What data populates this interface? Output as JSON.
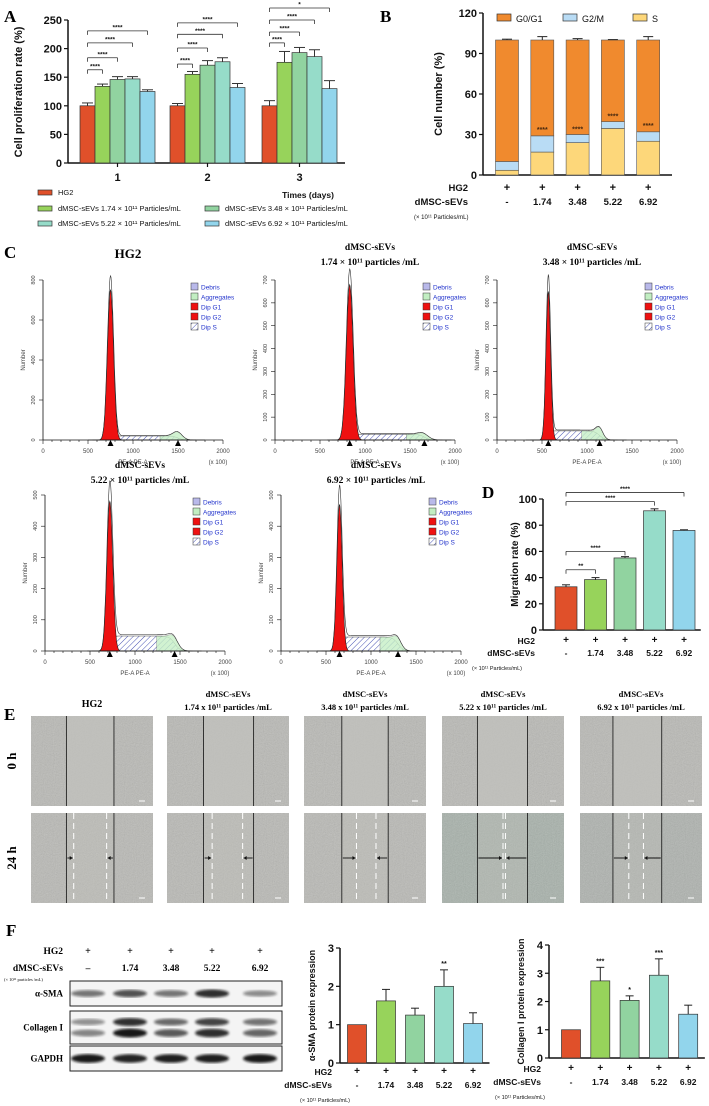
{
  "panels": [
    "A",
    "B",
    "C",
    "D",
    "E",
    "F"
  ],
  "rows": {
    "hg2": "HG2",
    "sevs": "dMSC-sEVs",
    "unit": "(× 10¹¹ Particles/mL)",
    "unit_f": "(× 10¹¹ particles /mL)",
    "plus": "+"
  },
  "chart_data": [
    {
      "panel": "A",
      "type": "bar",
      "ylabel": "Cell proliferation rate  (%)",
      "xlabel": "Times (days)",
      "categories": [
        "1",
        "2",
        "3"
      ],
      "ylim": [
        0,
        250
      ],
      "yticks": [
        "0",
        "50",
        "100",
        "150",
        "200",
        "250"
      ],
      "series": [
        {
          "name": "HG2",
          "color": "#e0502a",
          "values": [
            100,
            100,
            100
          ],
          "errors": [
            5,
            4,
            9
          ]
        },
        {
          "name": "dMSC-sEVs 1.74 × 10¹¹ Particles/mL",
          "color": "#97d35b",
          "values": [
            134,
            155,
            176
          ],
          "errors": [
            4,
            5,
            19
          ]
        },
        {
          "name": "dMSC-sEVs 3.48 × 10¹¹ Particles/mL",
          "color": "#91d3a0",
          "values": [
            146,
            171,
            193
          ],
          "errors": [
            5,
            8,
            9
          ]
        },
        {
          "name": "dMSC-sEVs 5.22 × 10¹¹ Particles/mL",
          "color": "#96dcc9",
          "values": [
            147,
            177,
            186
          ],
          "errors": [
            4,
            7,
            12
          ]
        },
        {
          "name": "dMSC-sEVs 6.92 × 10¹¹ Particles/mL",
          "color": "#92d5ec",
          "values": [
            125,
            132,
            130
          ],
          "errors": [
            3,
            7,
            14
          ]
        }
      ],
      "significance": [
        {
          "group": 0,
          "to": 1,
          "y": 163,
          "label": "****"
        },
        {
          "group": 0,
          "to": 2,
          "y": 184,
          "label": "****"
        },
        {
          "group": 0,
          "to": 3,
          "y": 210,
          "label": "****"
        },
        {
          "group": 0,
          "to": 4,
          "y": 231,
          "label": "****"
        },
        {
          "group": 1,
          "to": 1,
          "y": 173,
          "label": "****"
        },
        {
          "group": 1,
          "to": 2,
          "y": 201,
          "label": "****"
        },
        {
          "group": 1,
          "to": 3,
          "y": 225,
          "label": "****"
        },
        {
          "group": 1,
          "to": 4,
          "y": 245,
          "label": "****"
        },
        {
          "group": 2,
          "to": 1,
          "y": 210,
          "label": "****"
        },
        {
          "group": 2,
          "to": 2,
          "y": 229,
          "label": "****"
        },
        {
          "group": 2,
          "to": 3,
          "y": 250,
          "label": "****"
        },
        {
          "group": 2,
          "to": 4,
          "y": 271,
          "label": "*"
        }
      ]
    },
    {
      "panel": "B",
      "type": "bar",
      "stacked": true,
      "ylabel": "Cell number (%)",
      "ylim": [
        0,
        120
      ],
      "yticks": [
        "0",
        "30",
        "60",
        "90",
        "120"
      ],
      "categories": [
        "-",
        "1.74",
        "3.48",
        "5.22",
        "6.92"
      ],
      "series": [
        {
          "name": "S",
          "color": "#fdd77a",
          "values": [
            3.5,
            17,
            24,
            34.5,
            25
          ],
          "errors": [
            0.8,
            3,
            3,
            4,
            2.5
          ]
        },
        {
          "name": "G2/M",
          "color": "#b9dcf5",
          "values": [
            6.5,
            12,
            6,
            5,
            7
          ],
          "errors": [
            1,
            2,
            1.5,
            1.5,
            2
          ]
        },
        {
          "name": "G0/G1",
          "color": "#f08a2e",
          "values": [
            90,
            71,
            70,
            60.5,
            68
          ],
          "errors": [
            0.6,
            2.5,
            1,
            0.3,
            2.5
          ]
        }
      ],
      "stars": [
        "",
        "****",
        "****",
        "****",
        "****"
      ]
    },
    {
      "panel": "C",
      "type": "histogram",
      "title": [
        "HG2",
        ""
      ],
      "xlabel": "PE-A PE-A",
      "xunit": "(x 100)",
      "ylabel": "Number",
      "xticks": [
        "0",
        "500",
        "1000",
        "1500",
        "2000"
      ],
      "ymax": 800,
      "yticks": [
        "0",
        "200",
        "400",
        "600",
        "800"
      ],
      "g1_peak_channel": 750,
      "g1_peak_count": 750,
      "s_level": 20,
      "g2_count": 30,
      "legend": [
        "Debris",
        "Aggregates",
        "Dip G1",
        "Dip G2",
        "Dip S"
      ]
    },
    {
      "panel": "C",
      "type": "histogram",
      "title": [
        "dMSC-sEVs",
        "1.74 × 10¹¹ particles /mL"
      ],
      "xlabel": "PE-A PE-A",
      "xunit": "(x 100)",
      "ylabel": "Number",
      "xticks": [
        "0",
        "500",
        "1000",
        "1500",
        "2000"
      ],
      "ymax": 700,
      "yticks": [
        "0",
        "100",
        "200",
        "300",
        "400",
        "500",
        "600",
        "700"
      ],
      "g1_peak_channel": 830,
      "g1_peak_count": 680,
      "s_level": 25,
      "g2_count": 15,
      "legend": [
        "Debris",
        "Aggregates",
        "Dip G1",
        "Dip G2",
        "Dip S"
      ]
    },
    {
      "panel": "C",
      "type": "histogram",
      "title": [
        "dMSC-sEVs",
        "3.48 × 10¹¹ particles /mL"
      ],
      "xlabel": "PE-A PE-A",
      "xunit": "(x 100)",
      "ylabel": "Number",
      "xticks": [
        "0",
        "500",
        "1000",
        "1500",
        "2000"
      ],
      "ymax": 700,
      "yticks": [
        "0",
        "100",
        "200",
        "300",
        "400",
        "500",
        "600",
        "700"
      ],
      "g1_peak_channel": 570,
      "g1_peak_count": 650,
      "s_level": 40,
      "g2_count": 35,
      "legend": [
        "Debris",
        "Aggregates",
        "Dip G1",
        "Dip G2",
        "Dip S"
      ]
    },
    {
      "panel": "C",
      "type": "histogram",
      "title": [
        "dMSC-sEVs",
        "5.22 × 10¹¹ particles /mL"
      ],
      "xlabel": "PE-A PE-A",
      "xunit": "(x 100)",
      "ylabel": "Number",
      "xticks": [
        "0",
        "500",
        "1000",
        "1500",
        "2000"
      ],
      "ymax": 500,
      "yticks": [
        "0",
        "100",
        "200",
        "300",
        "400",
        "500"
      ],
      "g1_peak_channel": 720,
      "g1_peak_count": 480,
      "s_level": 48,
      "g2_count": 20,
      "legend": [
        "Debris",
        "Aggregates",
        "Dip G1",
        "Dip G2",
        "Dip S"
      ]
    },
    {
      "panel": "C",
      "type": "histogram",
      "title": [
        "dMSC-sEVs",
        "6.92 × 10¹¹ particles /mL"
      ],
      "xlabel": "PE-A PE-A",
      "xunit": "(x 100)",
      "ylabel": "Number",
      "xticks": [
        "0",
        "500",
        "1000",
        "1500",
        "2000"
      ],
      "ymax": 500,
      "yticks": [
        "0",
        "100",
        "200",
        "300",
        "400",
        "500"
      ],
      "g1_peak_channel": 650,
      "g1_peak_count": 470,
      "s_level": 45,
      "g2_count": 20,
      "legend": [
        "Debris",
        "Aggregates",
        "Dip G1",
        "Dip G2",
        "Dip S"
      ]
    },
    {
      "panel": "D",
      "type": "bar",
      "ylabel": "Migration rate (%)",
      "ylim": [
        0,
        100
      ],
      "yticks": [
        "0",
        "20",
        "40",
        "60",
        "80",
        "100"
      ],
      "categories": [
        "-",
        "1.74",
        "3.48",
        "5.22",
        "6.92"
      ],
      "values": [
        33,
        38.5,
        55,
        91,
        76
      ],
      "errors": [
        1.5,
        1.5,
        1,
        1.5,
        0.5
      ],
      "colors": [
        "#e0502a",
        "#97d35b",
        "#91d3a0",
        "#96dcc9",
        "#92d5ec"
      ],
      "significance": [
        {
          "to": 1,
          "y": 46,
          "label": "**"
        },
        {
          "to": 2,
          "y": 60,
          "label": "****"
        },
        {
          "to": 3,
          "y": 98,
          "label": "****"
        },
        {
          "to": 4,
          "y": 105,
          "label": "****"
        }
      ]
    },
    {
      "panel": "F",
      "type": "bar",
      "ylabel": "α-SMA protein expression",
      "ylim": [
        0,
        3
      ],
      "yticks": [
        "0",
        "1",
        "2",
        "3"
      ],
      "categories": [
        "-",
        "1.74",
        "3.48",
        "5.22",
        "6.92"
      ],
      "values": [
        1,
        1.62,
        1.25,
        2.0,
        1.03
      ],
      "errors": [
        0,
        0.3,
        0.18,
        0.43,
        0.28
      ],
      "colors": [
        "#e0502a",
        "#97d35b",
        "#91d3a0",
        "#96dcc9",
        "#92d5ec"
      ],
      "stars": [
        "",
        "",
        "",
        "**",
        ""
      ]
    },
    {
      "panel": "F",
      "type": "bar",
      "ylabel": "Collagen I protein expression",
      "ylim": [
        0,
        4
      ],
      "yticks": [
        "0",
        "1",
        "2",
        "3",
        "4"
      ],
      "categories": [
        "-",
        "1.74",
        "3.48",
        "5.22",
        "6.92"
      ],
      "values": [
        1,
        2.73,
        2.04,
        2.93,
        1.55
      ],
      "errors": [
        0,
        0.48,
        0.16,
        0.58,
        0.32
      ],
      "colors": [
        "#e0502a",
        "#97d35b",
        "#91d3a0",
        "#96dcc9",
        "#92d5ec"
      ],
      "stars": [
        "",
        "***",
        "*",
        "***",
        ""
      ]
    }
  ],
  "wound": {
    "titles": [
      [
        "HG2",
        ""
      ],
      [
        "dMSC-sEVs",
        "1.74 x 10¹¹ particles /mL"
      ],
      [
        "dMSC-sEVs",
        "3.48 x 10¹¹ particles /mL"
      ],
      [
        "dMSC-sEVs",
        "5.22 x 10¹¹ particles /mL"
      ],
      [
        "dMSC-sEVs",
        "6.92 x 10¹¹ particles /mL"
      ]
    ],
    "rows": [
      "0 h",
      "24 h"
    ]
  },
  "blot": {
    "conc": [
      "–",
      "1.74",
      "3.48",
      "5.22",
      "6.92"
    ],
    "proteins": [
      "α-SMA",
      "Collagen I",
      "GAPDH"
    ],
    "note": "(× 10¹¹ particles /mL)"
  }
}
